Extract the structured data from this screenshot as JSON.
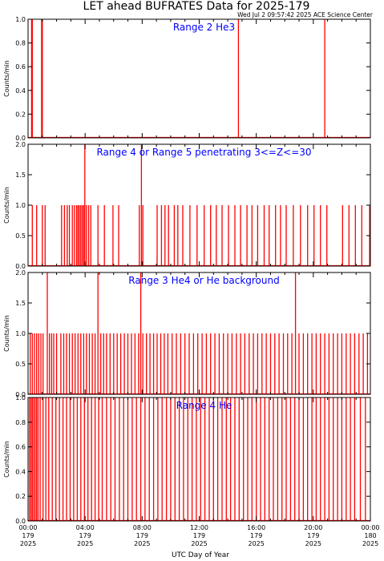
{
  "title": "LET ahead BUFRATES Data for 2025-179",
  "timestamp": "Wed Jul  2 09:57:42 2025 ACE Science Center",
  "xlabel": "UTC Day of Year",
  "colors": {
    "data": "#ff0000",
    "panel_title": "#0000ff",
    "axes": "#000000"
  },
  "x_ticks": [
    {
      "t": 0,
      "time": "00:00",
      "doy": "179",
      "year": "2025"
    },
    {
      "t": 4,
      "time": "04:00",
      "doy": "179",
      "year": "2025"
    },
    {
      "t": 8,
      "time": "08:00",
      "doy": "179",
      "year": "2025"
    },
    {
      "t": 12,
      "time": "12:00",
      "doy": "179",
      "year": "2025"
    },
    {
      "t": 16,
      "time": "16:00",
      "doy": "179",
      "year": "2025"
    },
    {
      "t": 20,
      "time": "20:00",
      "doy": "179",
      "year": "2025"
    },
    {
      "t": 24,
      "time": "00:00",
      "doy": "180",
      "year": "2025"
    }
  ],
  "chart_data": [
    {
      "type": "line",
      "title": "Range 2 He3",
      "ylabel": "Counts/min",
      "xlim": [
        0,
        24
      ],
      "ylim": [
        0,
        1.0
      ],
      "yticks": [
        "0.0",
        "0.2",
        "0.4",
        "0.6",
        "0.8",
        "1.0"
      ],
      "ytick_values": [
        0,
        0.2,
        0.4,
        0.6,
        0.8,
        1.0
      ],
      "spikes": [
        {
          "x": 0.25,
          "y": 1
        },
        {
          "x": 0.3,
          "y": 1
        },
        {
          "x": 0.95,
          "y": 1
        },
        {
          "x": 1.0,
          "y": 1
        },
        {
          "x": 14.75,
          "y": 1
        },
        {
          "x": 20.8,
          "y": 1
        }
      ]
    },
    {
      "type": "line",
      "title": "Range 4 or Range 5 penetrating 3<=Z<=30",
      "ylabel": "Counts/min",
      "xlim": [
        0,
        24
      ],
      "ylim": [
        0,
        2.0
      ],
      "yticks": [
        "0.0",
        "0.5",
        "1.0",
        "1.5",
        "2.0"
      ],
      "ytick_values": [
        0,
        0.5,
        1.0,
        1.5,
        2.0
      ],
      "spikes": [
        {
          "x": 0.3,
          "y": 1
        },
        {
          "x": 0.6,
          "y": 1
        },
        {
          "x": 1.0,
          "y": 1
        },
        {
          "x": 1.2,
          "y": 1
        },
        {
          "x": 2.35,
          "y": 1
        },
        {
          "x": 2.55,
          "y": 1
        },
        {
          "x": 2.75,
          "y": 1
        },
        {
          "x": 2.9,
          "y": 1
        },
        {
          "x": 3.1,
          "y": 1
        },
        {
          "x": 3.25,
          "y": 1
        },
        {
          "x": 3.4,
          "y": 1
        },
        {
          "x": 3.5,
          "y": 1
        },
        {
          "x": 3.6,
          "y": 1
        },
        {
          "x": 3.7,
          "y": 1
        },
        {
          "x": 3.8,
          "y": 1
        },
        {
          "x": 3.9,
          "y": 1
        },
        {
          "x": 3.98,
          "y": 2
        },
        {
          "x": 4.1,
          "y": 1
        },
        {
          "x": 4.25,
          "y": 1
        },
        {
          "x": 4.4,
          "y": 1
        },
        {
          "x": 4.9,
          "y": 1
        },
        {
          "x": 5.35,
          "y": 1
        },
        {
          "x": 5.95,
          "y": 1
        },
        {
          "x": 6.35,
          "y": 1
        },
        {
          "x": 7.8,
          "y": 1
        },
        {
          "x": 7.95,
          "y": 2
        },
        {
          "x": 8.05,
          "y": 1
        },
        {
          "x": 9.05,
          "y": 1
        },
        {
          "x": 9.35,
          "y": 1
        },
        {
          "x": 9.6,
          "y": 1
        },
        {
          "x": 9.85,
          "y": 1
        },
        {
          "x": 10.25,
          "y": 1
        },
        {
          "x": 10.5,
          "y": 1
        },
        {
          "x": 10.85,
          "y": 1
        },
        {
          "x": 11.35,
          "y": 1
        },
        {
          "x": 11.85,
          "y": 1
        },
        {
          "x": 12.35,
          "y": 1
        },
        {
          "x": 12.8,
          "y": 1
        },
        {
          "x": 13.2,
          "y": 1
        },
        {
          "x": 13.6,
          "y": 1
        },
        {
          "x": 14.05,
          "y": 1
        },
        {
          "x": 14.5,
          "y": 1
        },
        {
          "x": 14.9,
          "y": 1
        },
        {
          "x": 15.35,
          "y": 1
        },
        {
          "x": 15.7,
          "y": 1
        },
        {
          "x": 16.1,
          "y": 1
        },
        {
          "x": 16.55,
          "y": 1
        },
        {
          "x": 16.9,
          "y": 1
        },
        {
          "x": 17.35,
          "y": 1
        },
        {
          "x": 17.7,
          "y": 1
        },
        {
          "x": 18.1,
          "y": 1
        },
        {
          "x": 18.6,
          "y": 1
        },
        {
          "x": 19.1,
          "y": 1
        },
        {
          "x": 19.6,
          "y": 1
        },
        {
          "x": 20.05,
          "y": 1
        },
        {
          "x": 20.5,
          "y": 1
        },
        {
          "x": 20.95,
          "y": 1
        },
        {
          "x": 22.05,
          "y": 1
        },
        {
          "x": 22.5,
          "y": 1
        },
        {
          "x": 22.95,
          "y": 1
        },
        {
          "x": 23.4,
          "y": 1
        },
        {
          "x": 23.95,
          "y": 1
        }
      ]
    },
    {
      "type": "line",
      "title": "Range 3 He4 or He background",
      "ylabel": "Counts/min",
      "xlim": [
        0,
        24
      ],
      "ylim": [
        0,
        2.0
      ],
      "yticks": [
        "0.0",
        "0.5",
        "1.0",
        "1.5",
        "2.0"
      ],
      "ytick_values": [
        0,
        0.5,
        1.0,
        1.5,
        2.0
      ],
      "spikes": [
        {
          "x": 0.15,
          "y": 1
        },
        {
          "x": 0.3,
          "y": 1
        },
        {
          "x": 0.45,
          "y": 1
        },
        {
          "x": 0.6,
          "y": 1
        },
        {
          "x": 0.75,
          "y": 1
        },
        {
          "x": 0.9,
          "y": 1
        },
        {
          "x": 1.05,
          "y": 1
        },
        {
          "x": 1.35,
          "y": 2
        },
        {
          "x": 1.5,
          "y": 1
        },
        {
          "x": 1.65,
          "y": 1
        },
        {
          "x": 1.8,
          "y": 1
        },
        {
          "x": 2.0,
          "y": 1
        },
        {
          "x": 2.3,
          "y": 1
        },
        {
          "x": 2.5,
          "y": 1
        },
        {
          "x": 2.7,
          "y": 1
        },
        {
          "x": 2.9,
          "y": 1
        },
        {
          "x": 3.1,
          "y": 1
        },
        {
          "x": 3.3,
          "y": 1
        },
        {
          "x": 3.5,
          "y": 1
        },
        {
          "x": 3.7,
          "y": 1
        },
        {
          "x": 3.9,
          "y": 1
        },
        {
          "x": 4.1,
          "y": 1
        },
        {
          "x": 4.3,
          "y": 1
        },
        {
          "x": 4.5,
          "y": 1
        },
        {
          "x": 4.7,
          "y": 1
        },
        {
          "x": 4.9,
          "y": 2
        },
        {
          "x": 5.1,
          "y": 1
        },
        {
          "x": 5.3,
          "y": 1
        },
        {
          "x": 5.5,
          "y": 1
        },
        {
          "x": 5.75,
          "y": 1
        },
        {
          "x": 6.0,
          "y": 1
        },
        {
          "x": 6.25,
          "y": 1
        },
        {
          "x": 6.5,
          "y": 1
        },
        {
          "x": 6.75,
          "y": 1
        },
        {
          "x": 7.0,
          "y": 1
        },
        {
          "x": 7.25,
          "y": 1
        },
        {
          "x": 7.5,
          "y": 1
        },
        {
          "x": 7.75,
          "y": 1
        },
        {
          "x": 7.9,
          "y": 2
        },
        {
          "x": 8.05,
          "y": 1
        },
        {
          "x": 8.3,
          "y": 1
        },
        {
          "x": 8.55,
          "y": 1
        },
        {
          "x": 8.8,
          "y": 1
        },
        {
          "x": 9.05,
          "y": 1
        },
        {
          "x": 9.3,
          "y": 1
        },
        {
          "x": 9.55,
          "y": 1
        },
        {
          "x": 9.8,
          "y": 1
        },
        {
          "x": 10.1,
          "y": 1
        },
        {
          "x": 10.4,
          "y": 1
        },
        {
          "x": 10.7,
          "y": 1
        },
        {
          "x": 11.0,
          "y": 1
        },
        {
          "x": 11.3,
          "y": 1
        },
        {
          "x": 11.6,
          "y": 1
        },
        {
          "x": 11.9,
          "y": 1
        },
        {
          "x": 12.2,
          "y": 1
        },
        {
          "x": 12.5,
          "y": 1
        },
        {
          "x": 12.8,
          "y": 1
        },
        {
          "x": 13.1,
          "y": 1
        },
        {
          "x": 13.4,
          "y": 1
        },
        {
          "x": 13.7,
          "y": 1
        },
        {
          "x": 14.0,
          "y": 1
        },
        {
          "x": 14.3,
          "y": 1
        },
        {
          "x": 14.6,
          "y": 1
        },
        {
          "x": 14.9,
          "y": 1
        },
        {
          "x": 15.2,
          "y": 1
        },
        {
          "x": 15.5,
          "y": 1
        },
        {
          "x": 15.8,
          "y": 1
        },
        {
          "x": 16.1,
          "y": 1
        },
        {
          "x": 16.4,
          "y": 1
        },
        {
          "x": 16.7,
          "y": 1
        },
        {
          "x": 17.0,
          "y": 1
        },
        {
          "x": 17.3,
          "y": 1
        },
        {
          "x": 17.6,
          "y": 1
        },
        {
          "x": 17.9,
          "y": 1
        },
        {
          "x": 18.2,
          "y": 1
        },
        {
          "x": 18.5,
          "y": 1
        },
        {
          "x": 18.75,
          "y": 2
        },
        {
          "x": 19.0,
          "y": 1
        },
        {
          "x": 19.3,
          "y": 1
        },
        {
          "x": 19.6,
          "y": 1
        },
        {
          "x": 19.9,
          "y": 1
        },
        {
          "x": 20.2,
          "y": 1
        },
        {
          "x": 20.5,
          "y": 1
        },
        {
          "x": 20.8,
          "y": 1
        },
        {
          "x": 21.1,
          "y": 1
        },
        {
          "x": 21.4,
          "y": 1
        },
        {
          "x": 21.7,
          "y": 1
        },
        {
          "x": 22.0,
          "y": 1
        },
        {
          "x": 22.3,
          "y": 1
        },
        {
          "x": 22.6,
          "y": 1
        },
        {
          "x": 22.9,
          "y": 1
        },
        {
          "x": 23.2,
          "y": 1
        },
        {
          "x": 23.5,
          "y": 1
        },
        {
          "x": 23.8,
          "y": 1
        }
      ]
    },
    {
      "type": "line",
      "title": "Range 4 He",
      "ylabel": "Counts/min",
      "xlim": [
        0,
        24
      ],
      "ylim": [
        0,
        1.0
      ],
      "yticks": [
        "0.0",
        "0.2",
        "0.4",
        "0.6",
        "0.8",
        "1.0"
      ],
      "ytick_values": [
        0,
        0.2,
        0.4,
        0.6,
        0.8,
        1.0
      ],
      "spikes": [
        {
          "x": 0.1,
          "y": 1
        },
        {
          "x": 0.2,
          "y": 1
        },
        {
          "x": 0.3,
          "y": 1
        },
        {
          "x": 0.4,
          "y": 1
        },
        {
          "x": 0.5,
          "y": 1
        },
        {
          "x": 0.6,
          "y": 1
        },
        {
          "x": 0.7,
          "y": 1
        },
        {
          "x": 0.85,
          "y": 1
        },
        {
          "x": 1.05,
          "y": 1
        },
        {
          "x": 1.25,
          "y": 1
        },
        {
          "x": 1.45,
          "y": 1
        },
        {
          "x": 1.7,
          "y": 1
        },
        {
          "x": 1.95,
          "y": 1
        },
        {
          "x": 2.2,
          "y": 1
        },
        {
          "x": 2.45,
          "y": 1
        },
        {
          "x": 2.7,
          "y": 1
        },
        {
          "x": 2.95,
          "y": 1
        },
        {
          "x": 3.2,
          "y": 1
        },
        {
          "x": 3.45,
          "y": 1
        },
        {
          "x": 3.7,
          "y": 1
        },
        {
          "x": 3.95,
          "y": 1
        },
        {
          "x": 4.2,
          "y": 1
        },
        {
          "x": 4.45,
          "y": 1
        },
        {
          "x": 4.7,
          "y": 1
        },
        {
          "x": 4.95,
          "y": 1
        },
        {
          "x": 5.2,
          "y": 1
        },
        {
          "x": 5.5,
          "y": 1
        },
        {
          "x": 5.8,
          "y": 1
        },
        {
          "x": 6.1,
          "y": 1
        },
        {
          "x": 6.4,
          "y": 1
        },
        {
          "x": 6.7,
          "y": 1
        },
        {
          "x": 7.0,
          "y": 1
        },
        {
          "x": 7.3,
          "y": 1
        },
        {
          "x": 7.6,
          "y": 1
        },
        {
          "x": 7.9,
          "y": 1
        },
        {
          "x": 8.2,
          "y": 1
        },
        {
          "x": 8.5,
          "y": 1
        },
        {
          "x": 8.8,
          "y": 1
        },
        {
          "x": 9.1,
          "y": 1
        },
        {
          "x": 9.4,
          "y": 1
        },
        {
          "x": 9.7,
          "y": 1
        },
        {
          "x": 10.0,
          "y": 1
        },
        {
          "x": 10.3,
          "y": 1
        },
        {
          "x": 10.6,
          "y": 1
        },
        {
          "x": 10.9,
          "y": 1
        },
        {
          "x": 11.2,
          "y": 1
        },
        {
          "x": 11.5,
          "y": 1
        },
        {
          "x": 11.8,
          "y": 1
        },
        {
          "x": 12.1,
          "y": 1
        },
        {
          "x": 12.4,
          "y": 1
        },
        {
          "x": 12.7,
          "y": 1
        },
        {
          "x": 13.0,
          "y": 1
        },
        {
          "x": 13.3,
          "y": 1
        },
        {
          "x": 13.6,
          "y": 1
        },
        {
          "x": 13.9,
          "y": 1
        },
        {
          "x": 14.2,
          "y": 1
        },
        {
          "x": 14.5,
          "y": 1
        },
        {
          "x": 14.8,
          "y": 1
        },
        {
          "x": 15.1,
          "y": 1
        },
        {
          "x": 15.4,
          "y": 1
        },
        {
          "x": 15.7,
          "y": 1
        },
        {
          "x": 16.0,
          "y": 1
        },
        {
          "x": 16.3,
          "y": 1
        },
        {
          "x": 16.6,
          "y": 1
        },
        {
          "x": 16.9,
          "y": 1
        },
        {
          "x": 17.2,
          "y": 1
        },
        {
          "x": 17.5,
          "y": 1
        },
        {
          "x": 17.8,
          "y": 1
        },
        {
          "x": 18.1,
          "y": 1
        },
        {
          "x": 18.4,
          "y": 1
        },
        {
          "x": 18.7,
          "y": 1
        },
        {
          "x": 19.0,
          "y": 1
        },
        {
          "x": 19.3,
          "y": 1
        },
        {
          "x": 19.6,
          "y": 1
        },
        {
          "x": 19.9,
          "y": 1
        },
        {
          "x": 20.2,
          "y": 1
        },
        {
          "x": 20.5,
          "y": 1
        },
        {
          "x": 20.8,
          "y": 1
        },
        {
          "x": 21.1,
          "y": 1
        },
        {
          "x": 21.4,
          "y": 1
        },
        {
          "x": 21.7,
          "y": 1
        },
        {
          "x": 22.0,
          "y": 1
        },
        {
          "x": 22.3,
          "y": 1
        },
        {
          "x": 22.6,
          "y": 1
        },
        {
          "x": 22.9,
          "y": 1
        },
        {
          "x": 23.3,
          "y": 1
        },
        {
          "x": 23.65,
          "y": 1
        }
      ]
    }
  ]
}
